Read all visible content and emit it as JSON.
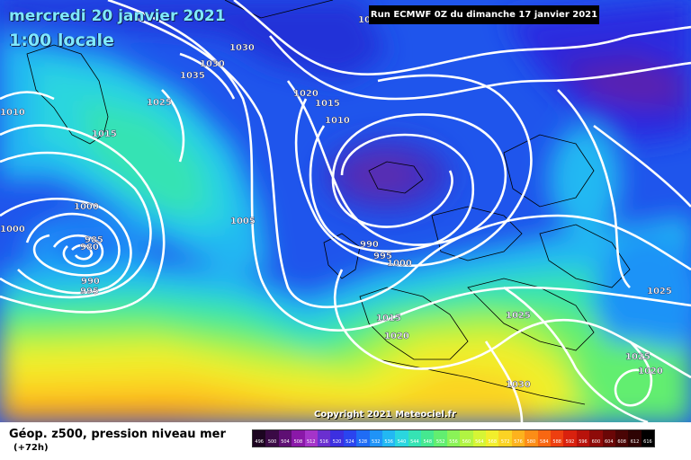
{
  "header": {
    "date_line": "mercredi 20 janvier 2021",
    "time_line": "1:00 locale",
    "run_info": "Run ECMWF 0Z du dimanche 17 janvier 2021"
  },
  "footer": {
    "copyright": "Copyright 2021 Meteociel.fr",
    "legend_title": "Géop. z500, pression niveau mer",
    "legend_subtitle": "(+72h)"
  },
  "colorbar": {
    "labels": [
      "496",
      "500",
      "504",
      "508",
      "512",
      "516",
      "520",
      "524",
      "528",
      "532",
      "536",
      "540",
      "544",
      "548",
      "552",
      "556",
      "560",
      "564",
      "568",
      "572",
      "576",
      "580",
      "584",
      "588",
      "592",
      "596",
      "600",
      "604",
      "608",
      "612",
      "616"
    ],
    "colors": [
      "#1c0520",
      "#3a0a45",
      "#5e0f73",
      "#8a18a8",
      "#a534c9",
      "#6a2fd0",
      "#3c2fe0",
      "#2a44ef",
      "#1f6cf5",
      "#1f93f7",
      "#22b8f2",
      "#2ad6df",
      "#35e3b4",
      "#45e890",
      "#62ee70",
      "#8af357",
      "#b1f442",
      "#d6f535",
      "#f2ee2c",
      "#fbd324",
      "#fdb21d",
      "#fc8d17",
      "#f86712",
      "#ee3f10",
      "#d9210e",
      "#b8120b",
      "#8e0b09",
      "#6a0707",
      "#4a0505",
      "#2e0303",
      "#000000"
    ]
  },
  "isobar_labels": [
    {
      "text": "1030"
    },
    {
      "text": "1030"
    },
    {
      "text": "1035"
    },
    {
      "text": "1025"
    },
    {
      "text": "1015"
    },
    {
      "text": "1010"
    },
    {
      "text": "1000"
    },
    {
      "text": "1000"
    },
    {
      "text": "985"
    },
    {
      "text": "980"
    },
    {
      "text": "990"
    },
    {
      "text": "995"
    },
    {
      "text": "1005"
    },
    {
      "text": "1020"
    },
    {
      "text": "1015"
    },
    {
      "text": "1010"
    },
    {
      "text": "990"
    },
    {
      "text": "995"
    },
    {
      "text": "1000"
    },
    {
      "text": "1015"
    },
    {
      "text": "1020"
    },
    {
      "text": "1025"
    },
    {
      "text": "1030"
    },
    {
      "text": "1025"
    },
    {
      "text": "1025"
    },
    {
      "text": "1020"
    },
    {
      "text": "1025"
    }
  ]
}
